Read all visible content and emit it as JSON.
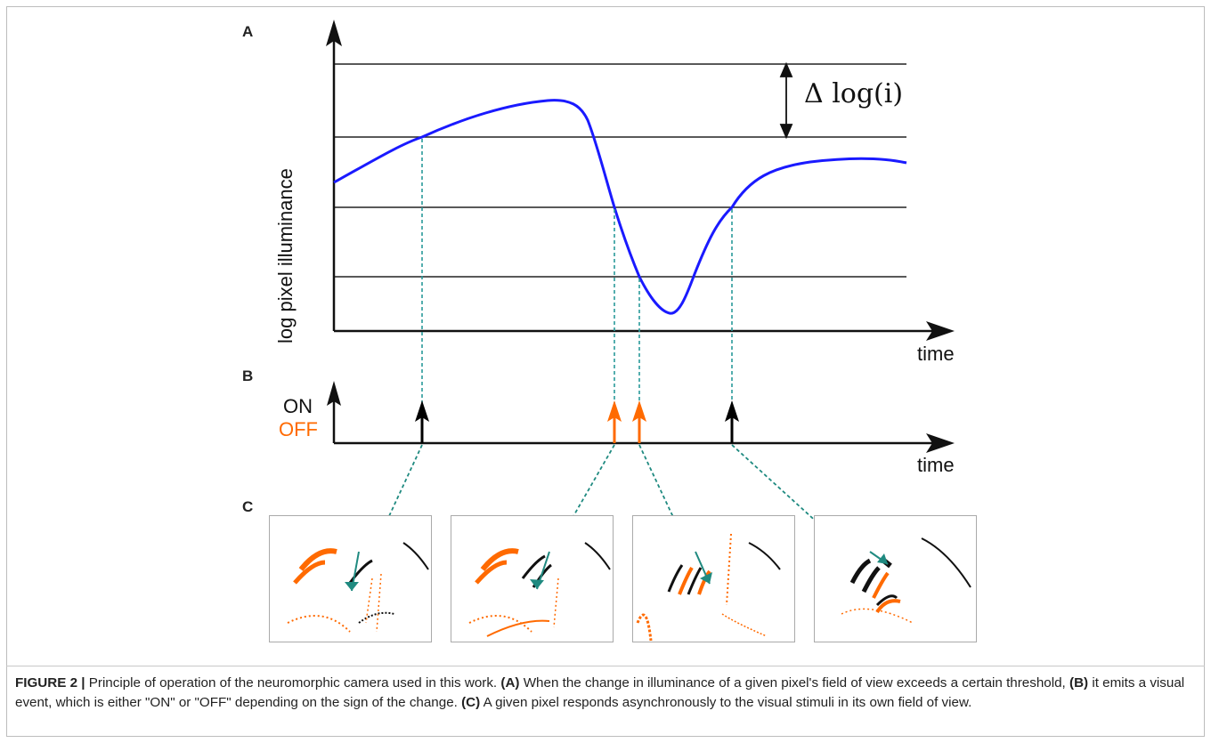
{
  "panels": {
    "a_label": "A",
    "b_label": "B",
    "c_label": "C"
  },
  "panel_a": {
    "ylabel": "log pixel illuminance",
    "xlabel": "time",
    "delta_text": "Δ log(i)"
  },
  "panel_b": {
    "on_label": "ON",
    "off_label": "OFF",
    "xlabel": "time"
  },
  "colors": {
    "curve": "#1a1aff",
    "on": "#000000",
    "off": "#ff6a00",
    "dashed": "#2a9a9a",
    "arrow_teal": "#1f8a80"
  },
  "caption": {
    "label": "FIGURE 2 |",
    "intro": "Principle of operation of the neuromorphic camera used in this work.",
    "a_ref": "(A)",
    "a_text": "When the change in illuminance of a given pixel's field of view exceeds a certain threshold,",
    "b_ref": "(B)",
    "b_text": "it emits a visual event, which is either \"ON\" or \"OFF\" depending on the sign of the change.",
    "c_ref": "(C)",
    "c_text": "A given pixel responds asynchronously to the visual stimuli in its own field of view."
  },
  "events": [
    {
      "polarity": "ON"
    },
    {
      "polarity": "OFF"
    },
    {
      "polarity": "OFF"
    },
    {
      "polarity": "ON"
    }
  ]
}
